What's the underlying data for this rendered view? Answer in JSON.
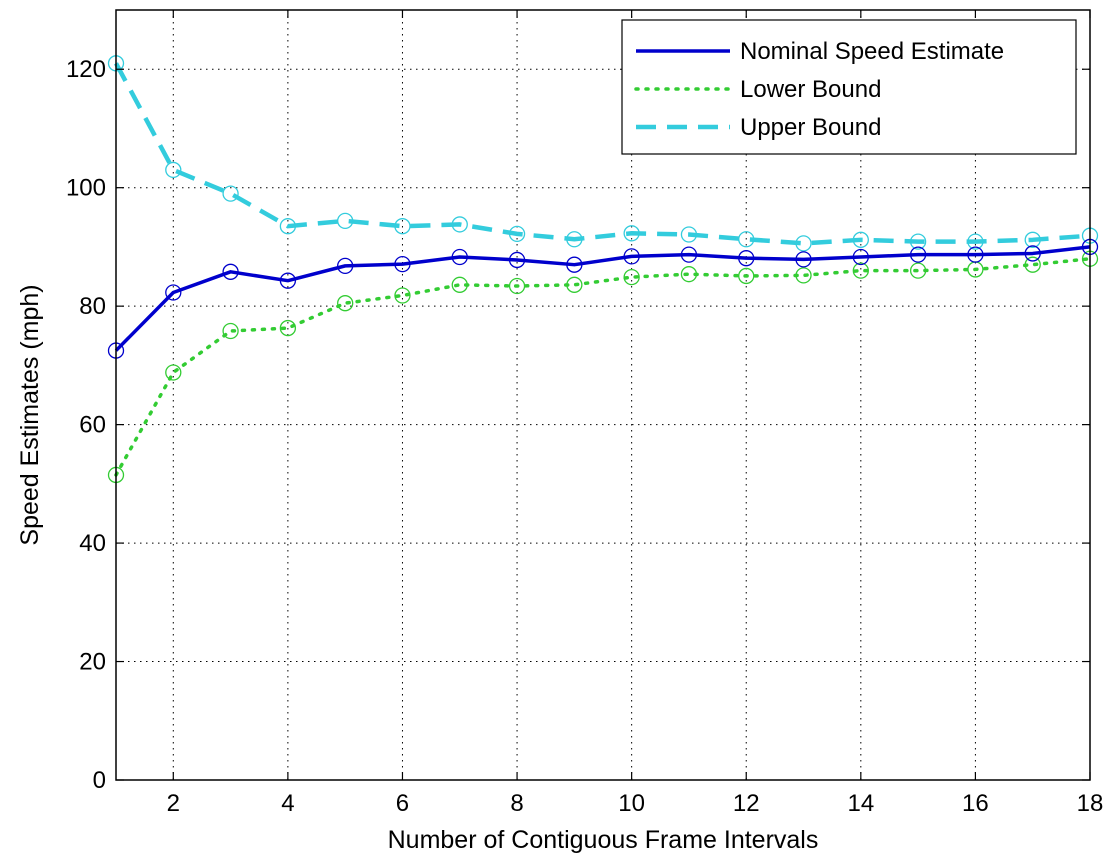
{
  "chart_data": {
    "type": "line",
    "title": "",
    "xlabel": "Number of Contiguous Frame Intervals",
    "ylabel": "Speed Estimates (mph)",
    "xlim": [
      1,
      18
    ],
    "ylim": [
      0,
      130
    ],
    "xticks": [
      2,
      4,
      6,
      8,
      10,
      12,
      14,
      16,
      18
    ],
    "yticks": [
      0,
      20,
      40,
      60,
      80,
      100,
      120
    ],
    "grid": true,
    "legend_position": "top-right",
    "x": [
      1,
      2,
      3,
      4,
      5,
      6,
      7,
      8,
      9,
      10,
      11,
      12,
      13,
      14,
      15,
      16,
      17,
      18
    ],
    "series": [
      {
        "name": "Nominal Speed Estimate",
        "color": "#0000cc",
        "line_style": "solid",
        "marker": "circle",
        "values": [
          72.5,
          82.3,
          85.8,
          84.3,
          86.8,
          87.1,
          88.3,
          87.8,
          87.0,
          88.4,
          88.7,
          88.1,
          87.9,
          88.3,
          88.7,
          88.7,
          88.9,
          90.0
        ]
      },
      {
        "name": "Lower Bound",
        "color": "#33cc33",
        "line_style": "dotted",
        "marker": "circle",
        "values": [
          51.5,
          68.8,
          75.8,
          76.3,
          80.5,
          81.8,
          83.6,
          83.4,
          83.6,
          84.9,
          85.4,
          85.1,
          85.2,
          86.0,
          86.0,
          86.2,
          87.0,
          88.0
        ]
      },
      {
        "name": "Upper Bound",
        "color": "#33ccdd",
        "line_style": "dashed",
        "marker": "circle",
        "values": [
          121.0,
          103.0,
          99.0,
          93.5,
          94.4,
          93.5,
          93.8,
          92.2,
          91.3,
          92.3,
          92.1,
          91.3,
          90.6,
          91.2,
          90.9,
          90.9,
          91.2,
          91.9
        ]
      }
    ]
  }
}
